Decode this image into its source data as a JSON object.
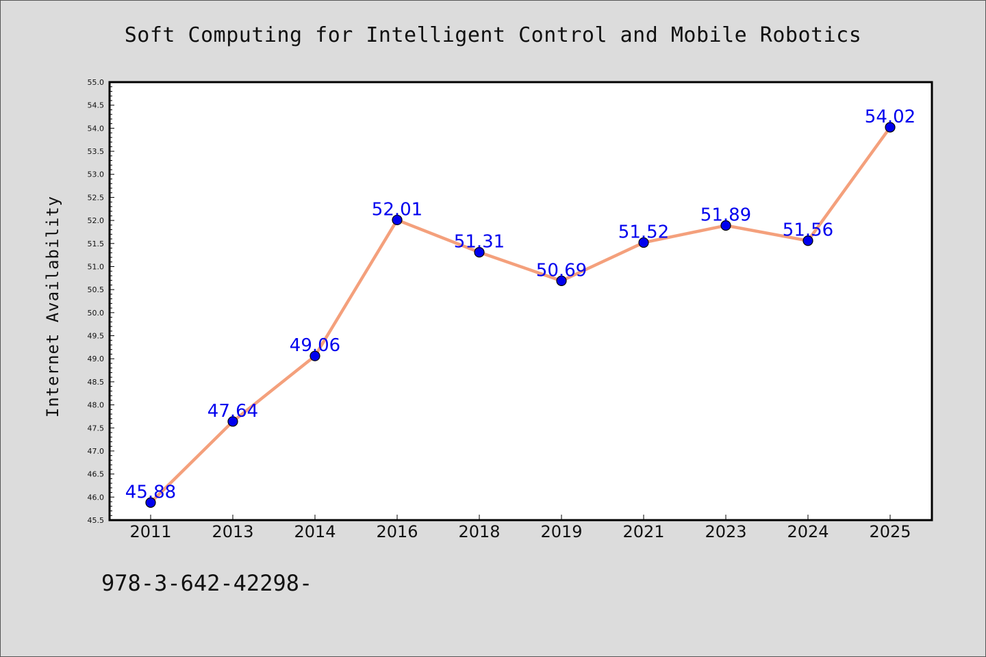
{
  "page": {
    "isbn": "978-3-642-42298-"
  },
  "chart_data": {
    "type": "line",
    "title": "Soft Computing for Intelligent Control and Mobile Robotics",
    "xlabel": "",
    "ylabel": "Internet Availability",
    "categories": [
      "2011",
      "2013",
      "2014",
      "2016",
      "2018",
      "2019",
      "2021",
      "2023",
      "2024",
      "2025"
    ],
    "values": [
      45.88,
      47.64,
      49.06,
      52.01,
      51.31,
      50.69,
      51.52,
      51.89,
      51.56,
      54.02
    ],
    "data_labels": [
      "45.88",
      "47.64",
      "49.06",
      "52.01",
      "51.31",
      "50.69",
      "51.52",
      "51.89",
      "51.56",
      "54.02"
    ],
    "ylim": [
      45.5,
      55.0
    ],
    "y_ticks": [
      "45.5",
      "46.0",
      "46.5",
      "47.0",
      "47.5",
      "48.0",
      "48.5",
      "49.0",
      "49.5",
      "50.0",
      "50.5",
      "51.0",
      "51.5",
      "52.0",
      "52.5",
      "53.0",
      "53.5",
      "54.0",
      "54.5",
      "55.0"
    ],
    "grid": false,
    "colors": {
      "line": "#f4a07c",
      "marker": "#0000ee",
      "label": "#0000ee"
    }
  }
}
